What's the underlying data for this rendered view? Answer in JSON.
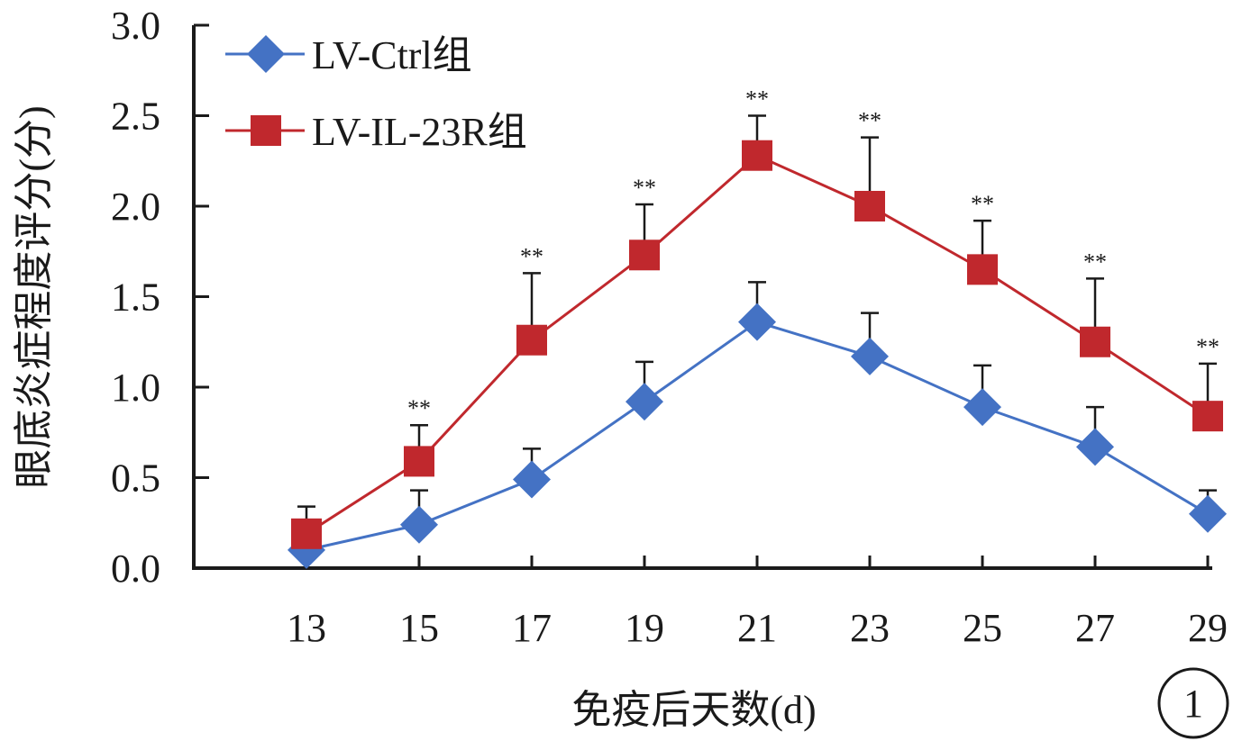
{
  "chart_data": {
    "type": "line",
    "title": "",
    "xlabel": "免疫后天数(d)",
    "ylabel": "眼底炎症程度评分(分)",
    "ylim": [
      0,
      3.0
    ],
    "y_ticks": [
      "0.0",
      "0.5",
      "1.0",
      "1.5",
      "2.0",
      "2.5",
      "3.0"
    ],
    "x": [
      "13",
      "15",
      "17",
      "19",
      "21",
      "23",
      "25",
      "27",
      "29"
    ],
    "legend_position": "top-left",
    "grid": false,
    "series": [
      {
        "name": "LV-Ctrl组",
        "marker": "diamond",
        "color": "#4472C4",
        "values": [
          0.1,
          0.24,
          0.49,
          0.92,
          1.36,
          1.17,
          0.89,
          0.67,
          0.3
        ],
        "error": [
          0.0,
          0.19,
          0.17,
          0.22,
          0.22,
          0.24,
          0.23,
          0.22,
          0.13
        ]
      },
      {
        "name": "LV-IL-23R组",
        "marker": "square",
        "color": "#C0282D",
        "values": [
          0.19,
          0.59,
          1.26,
          1.73,
          2.28,
          2.0,
          1.65,
          1.25,
          0.84
        ],
        "error": [
          0.15,
          0.2,
          0.37,
          0.28,
          0.22,
          0.38,
          0.27,
          0.35,
          0.29
        ]
      }
    ],
    "significance": [
      "",
      "**",
      "**",
      "**",
      "**",
      "**",
      "**",
      "**",
      "**"
    ],
    "panel_label": "1"
  }
}
